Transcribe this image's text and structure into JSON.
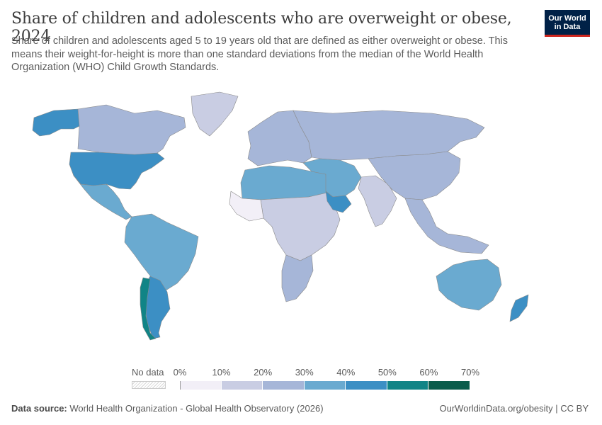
{
  "header": {
    "title": "Share of children and adolescents who are overweight or obese, 2024",
    "subtitle": "Share of children and adolescents aged 5 to 19 years old that are defined as either overweight or obese. This means their weight-for-height is more than one standard deviations from the median of the World Health Organization (WHO) Child Growth Standards."
  },
  "logo": {
    "line1": "Our World",
    "line2": "in Data",
    "bg_color": "#002147",
    "accent_color": "#ce261e"
  },
  "legend": {
    "no_data_label": "No data",
    "ticks": [
      "0%",
      "10%",
      "20%",
      "30%",
      "40%",
      "50%",
      "60%",
      "70%"
    ],
    "bins": [
      {
        "min": 0,
        "max": 10,
        "color": "#f2eff7"
      },
      {
        "min": 10,
        "max": 20,
        "color": "#c9cde3"
      },
      {
        "min": 20,
        "max": 30,
        "color": "#a6b6d8"
      },
      {
        "min": 30,
        "max": 40,
        "color": "#6aaad0"
      },
      {
        "min": 40,
        "max": 50,
        "color": "#3c8fc4"
      },
      {
        "min": 50,
        "max": 60,
        "color": "#118486"
      },
      {
        "min": 60,
        "max": 70,
        "color": "#0a5c4b"
      }
    ]
  },
  "footer": {
    "source_label": "Data source:",
    "source_text": "World Health Organization - Global Health Observatory (2026)",
    "url_text": "OurWorldinData.org/obesity | CC BY"
  },
  "map_regions": [
    {
      "name": "North America",
      "share_percent": 45
    },
    {
      "name": "Alaska",
      "share_percent": 45
    },
    {
      "name": "Canada",
      "share_percent": 25
    },
    {
      "name": "Greenland",
      "share_percent": 15
    },
    {
      "name": "Mexico and Central America",
      "share_percent": 35
    },
    {
      "name": "South America north",
      "share_percent": 35
    },
    {
      "name": "Chile and Argentina",
      "share_percent": 45
    },
    {
      "name": "Southern Cone coast",
      "share_percent": 55
    },
    {
      "name": "North Africa",
      "share_percent": 35
    },
    {
      "name": "Sub-Saharan Africa",
      "share_percent": 15
    },
    {
      "name": "Sahel",
      "share_percent": 5
    },
    {
      "name": "Southern Africa",
      "share_percent": 25
    },
    {
      "name": "Europe",
      "share_percent": 25
    },
    {
      "name": "Russia and Central Asia",
      "share_percent": 25
    },
    {
      "name": "Middle East",
      "share_percent": 35
    },
    {
      "name": "Gulf",
      "share_percent": 45
    },
    {
      "name": "South Asia",
      "share_percent": 15
    },
    {
      "name": "China",
      "share_percent": 25
    },
    {
      "name": "Southeast Asia",
      "share_percent": 25
    },
    {
      "name": "Australia",
      "share_percent": 35
    },
    {
      "name": "New Zealand",
      "share_percent": 45
    }
  ]
}
